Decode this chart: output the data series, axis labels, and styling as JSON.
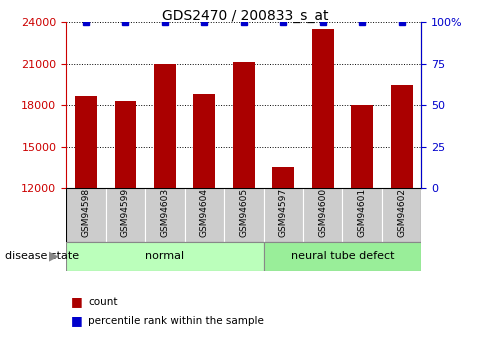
{
  "title": "GDS2470 / 200833_s_at",
  "samples": [
    "GSM94598",
    "GSM94599",
    "GSM94603",
    "GSM94604",
    "GSM94605",
    "GSM94597",
    "GSM94600",
    "GSM94601",
    "GSM94602"
  ],
  "counts": [
    18700,
    18300,
    21000,
    18800,
    21100,
    13500,
    23500,
    18000,
    19500
  ],
  "percentiles": [
    100,
    100,
    100,
    100,
    100,
    100,
    100,
    100,
    100
  ],
  "bar_color": "#aa0000",
  "dot_color": "#0000cc",
  "ylim_left": [
    12000,
    24000
  ],
  "ylim_right": [
    0,
    100
  ],
  "yticks_left": [
    12000,
    15000,
    18000,
    21000,
    24000
  ],
  "yticks_right": [
    0,
    25,
    50,
    75,
    100
  ],
  "groups": [
    {
      "label": "normal",
      "start": 0,
      "end": 5,
      "color": "#bbffbb"
    },
    {
      "label": "neural tube defect",
      "start": 5,
      "end": 9,
      "color": "#99ee99"
    }
  ],
  "disease_state_label": "disease state",
  "legend_count_label": "count",
  "legend_percentile_label": "percentile rank within the sample",
  "background_color": "#ffffff",
  "tick_area_color": "#cccccc",
  "left_axis_color": "#cc0000",
  "right_axis_color": "#0000cc"
}
